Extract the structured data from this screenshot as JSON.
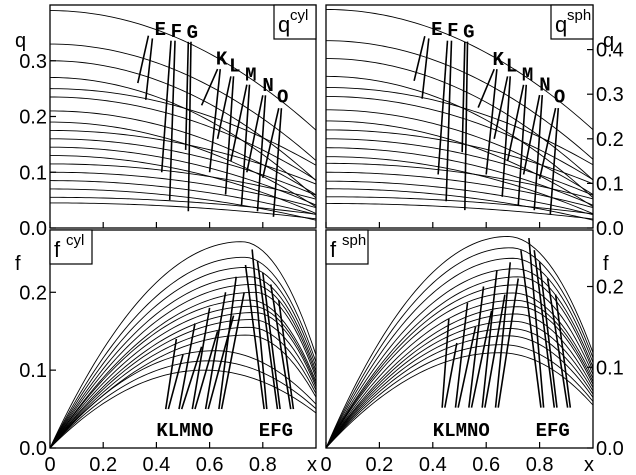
{
  "chart_data": [
    {
      "type": "line",
      "id": "q_cyl",
      "panel_label": {
        "main": "q",
        "sup": "cyl"
      },
      "ylabel": "q",
      "xlim": [
        0,
        1.0
      ],
      "ylim": [
        0,
        0.4
      ],
      "yticks": [
        0.0,
        0.1,
        0.2,
        0.3
      ],
      "ytick_labels": [
        "0.0",
        "0.1",
        "0.2",
        "0.3"
      ],
      "xticks": [
        0,
        0.2,
        0.4,
        0.6,
        0.8
      ],
      "axis_side": "left",
      "curve_letters": [
        {
          "text": "E",
          "x": 0.415,
          "y": 0.346
        },
        {
          "text": "F",
          "x": 0.475,
          "y": 0.343
        },
        {
          "text": "G",
          "x": 0.535,
          "y": 0.341
        },
        {
          "text": "K",
          "x": 0.645,
          "y": 0.293
        },
        {
          "text": "L",
          "x": 0.695,
          "y": 0.281
        },
        {
          "text": "M",
          "x": 0.755,
          "y": 0.265
        },
        {
          "text": "N",
          "x": 0.82,
          "y": 0.246
        },
        {
          "text": "O",
          "x": 0.875,
          "y": 0.225
        }
      ],
      "series_amplitudes": [
        0.39,
        0.33,
        0.3,
        0.27,
        0.25,
        0.235,
        0.21,
        0.19,
        0.175,
        0.16,
        0.145,
        0.13,
        0.115,
        0.1,
        0.085,
        0.07,
        0.055,
        0.045
      ],
      "lines": [
        [
          [
            0.37,
            0.345
          ],
          [
            0.33,
            0.26
          ]
        ],
        [
          [
            0.385,
            0.34
          ],
          [
            0.36,
            0.23
          ]
        ],
        [
          [
            0.455,
            0.336
          ],
          [
            0.42,
            0.1
          ]
        ],
        [
          [
            0.47,
            0.336
          ],
          [
            0.45,
            0.05
          ]
        ],
        [
          [
            0.52,
            0.334
          ],
          [
            0.51,
            0.14
          ]
        ],
        [
          [
            0.53,
            0.334
          ],
          [
            0.52,
            0.03
          ]
        ],
        [
          [
            0.63,
            0.285
          ],
          [
            0.57,
            0.22
          ]
        ],
        [
          [
            0.64,
            0.285
          ],
          [
            0.6,
            0.1
          ]
        ],
        [
          [
            0.68,
            0.272
          ],
          [
            0.63,
            0.16
          ]
        ],
        [
          [
            0.69,
            0.272
          ],
          [
            0.66,
            0.06
          ]
        ],
        [
          [
            0.74,
            0.257
          ],
          [
            0.68,
            0.12
          ]
        ],
        [
          [
            0.75,
            0.257
          ],
          [
            0.72,
            0.04
          ]
        ],
        [
          [
            0.8,
            0.238
          ],
          [
            0.74,
            0.1
          ]
        ],
        [
          [
            0.81,
            0.238
          ],
          [
            0.78,
            0.03
          ]
        ],
        [
          [
            0.86,
            0.215
          ],
          [
            0.8,
            0.09
          ]
        ],
        [
          [
            0.87,
            0.215
          ],
          [
            0.84,
            0.02
          ]
        ]
      ]
    },
    {
      "type": "line",
      "id": "q_sph",
      "panel_label": {
        "main": "q",
        "sup": "sph"
      },
      "ylabel": "q",
      "xlim": [
        0,
        1.0
      ],
      "ylim": [
        0,
        0.5
      ],
      "yticks": [
        0.0,
        0.1,
        0.2,
        0.3,
        0.4
      ],
      "ytick_labels": [
        "0.0",
        "0.1",
        "0.2",
        "0.3",
        "0.4"
      ],
      "xticks": [
        0,
        0.2,
        0.4,
        0.6,
        0.8
      ],
      "axis_side": "right",
      "curve_letters": [
        {
          "text": "E",
          "x": 0.415,
          "y": 0.433
        },
        {
          "text": "F",
          "x": 0.475,
          "y": 0.43
        },
        {
          "text": "G",
          "x": 0.535,
          "y": 0.427
        },
        {
          "text": "K",
          "x": 0.645,
          "y": 0.366
        },
        {
          "text": "L",
          "x": 0.695,
          "y": 0.351
        },
        {
          "text": "M",
          "x": 0.755,
          "y": 0.331
        },
        {
          "text": "N",
          "x": 0.82,
          "y": 0.308
        },
        {
          "text": "O",
          "x": 0.875,
          "y": 0.281
        }
      ],
      "series_amplitudes": [
        0.49,
        0.42,
        0.38,
        0.34,
        0.315,
        0.295,
        0.265,
        0.24,
        0.22,
        0.2,
        0.18,
        0.16,
        0.145,
        0.125,
        0.105,
        0.088,
        0.07,
        0.055
      ],
      "lines": [
        [
          [
            0.37,
            0.43
          ],
          [
            0.33,
            0.33
          ]
        ],
        [
          [
            0.385,
            0.425
          ],
          [
            0.36,
            0.29
          ]
        ],
        [
          [
            0.455,
            0.42
          ],
          [
            0.42,
            0.12
          ]
        ],
        [
          [
            0.47,
            0.42
          ],
          [
            0.45,
            0.06
          ]
        ],
        [
          [
            0.52,
            0.418
          ],
          [
            0.51,
            0.17
          ]
        ],
        [
          [
            0.53,
            0.418
          ],
          [
            0.52,
            0.04
          ]
        ],
        [
          [
            0.63,
            0.356
          ],
          [
            0.57,
            0.27
          ]
        ],
        [
          [
            0.64,
            0.356
          ],
          [
            0.6,
            0.12
          ]
        ],
        [
          [
            0.68,
            0.34
          ],
          [
            0.63,
            0.2
          ]
        ],
        [
          [
            0.69,
            0.34
          ],
          [
            0.66,
            0.07
          ]
        ],
        [
          [
            0.74,
            0.321
          ],
          [
            0.68,
            0.15
          ]
        ],
        [
          [
            0.75,
            0.321
          ],
          [
            0.72,
            0.05
          ]
        ],
        [
          [
            0.8,
            0.298
          ],
          [
            0.74,
            0.12
          ]
        ],
        [
          [
            0.81,
            0.298
          ],
          [
            0.78,
            0.04
          ]
        ],
        [
          [
            0.86,
            0.269
          ],
          [
            0.8,
            0.11
          ]
        ],
        [
          [
            0.87,
            0.269
          ],
          [
            0.84,
            0.03
          ]
        ]
      ]
    },
    {
      "type": "line",
      "id": "f_cyl",
      "panel_label": {
        "main": "f",
        "sup": "cyl"
      },
      "ylabel": "f",
      "xlim": [
        0,
        1.0
      ],
      "ylim": [
        0,
        0.28
      ],
      "yticks": [
        0.0,
        0.1,
        0.2
      ],
      "ytick_labels": [
        "0.0",
        "0.1",
        "0.2"
      ],
      "xticks": [
        0,
        0.2,
        0.4,
        0.6,
        0.8
      ],
      "xtick_labels": [
        "0",
        "0.2",
        "0.4",
        "0.6",
        "0.8"
      ],
      "xlabel": "x",
      "axis_side": "left",
      "bottom_labels": [
        {
          "text": "KLMNO",
          "x": 0.4
        },
        {
          "text": "EFG",
          "x": 0.785
        }
      ],
      "series_peaks": [
        {
          "peak": 0.265,
          "at": 0.72
        },
        {
          "peak": 0.245,
          "at": 0.73
        },
        {
          "peak": 0.232,
          "at": 0.74
        },
        {
          "peak": 0.22,
          "at": 0.75
        },
        {
          "peak": 0.21,
          "at": 0.76
        },
        {
          "peak": 0.2,
          "at": 0.77
        },
        {
          "peak": 0.19,
          "at": 0.75
        },
        {
          "peak": 0.182,
          "at": 0.76
        },
        {
          "peak": 0.174,
          "at": 0.77
        },
        {
          "peak": 0.165,
          "at": 0.76
        },
        {
          "peak": 0.155,
          "at": 0.75
        },
        {
          "peak": 0.145,
          "at": 0.74
        },
        {
          "peak": 0.125,
          "at": 0.62
        },
        {
          "peak": 0.112,
          "at": 0.6
        },
        {
          "peak": 0.1,
          "at": 0.58
        }
      ],
      "lines": [
        [
          [
            0.435,
            0.05
          ],
          [
            0.475,
            0.14
          ]
        ],
        [
          [
            0.445,
            0.05
          ],
          [
            0.5,
            0.12
          ]
        ],
        [
          [
            0.485,
            0.05
          ],
          [
            0.545,
            0.16
          ]
        ],
        [
          [
            0.495,
            0.05
          ],
          [
            0.57,
            0.13
          ]
        ],
        [
          [
            0.535,
            0.05
          ],
          [
            0.6,
            0.18
          ]
        ],
        [
          [
            0.545,
            0.05
          ],
          [
            0.63,
            0.15
          ]
        ],
        [
          [
            0.585,
            0.05
          ],
          [
            0.66,
            0.2
          ]
        ],
        [
          [
            0.595,
            0.05
          ],
          [
            0.69,
            0.17
          ]
        ],
        [
          [
            0.635,
            0.05
          ],
          [
            0.7,
            0.22
          ]
        ],
        [
          [
            0.645,
            0.05
          ],
          [
            0.73,
            0.2
          ]
        ],
        [
          [
            0.805,
            0.05
          ],
          [
            0.735,
            0.235
          ]
        ],
        [
          [
            0.815,
            0.05
          ],
          [
            0.76,
            0.255
          ]
        ],
        [
          [
            0.855,
            0.05
          ],
          [
            0.78,
            0.24
          ]
        ],
        [
          [
            0.865,
            0.05
          ],
          [
            0.8,
            0.225
          ]
        ],
        [
          [
            0.905,
            0.05
          ],
          [
            0.83,
            0.21
          ]
        ],
        [
          [
            0.915,
            0.05
          ],
          [
            0.86,
            0.19
          ]
        ]
      ]
    },
    {
      "type": "line",
      "id": "f_sph",
      "panel_label": {
        "main": "f",
        "sup": "sph"
      },
      "ylabel": "f",
      "xlim": [
        0,
        1.0
      ],
      "ylim": [
        0,
        0.27
      ],
      "yticks": [
        0.0,
        0.1,
        0.2
      ],
      "ytick_labels": [
        "0.0",
        "0.1",
        "0.2"
      ],
      "xticks": [
        0,
        0.2,
        0.4,
        0.6,
        0.8
      ],
      "xtick_labels": [
        "0",
        "0.2",
        "0.4",
        "0.6",
        "0.8"
      ],
      "xlabel": "x",
      "axis_side": "right",
      "bottom_labels": [
        {
          "text": "KLMNO",
          "x": 0.4
        },
        {
          "text": "EFG",
          "x": 0.785
        }
      ],
      "series_peaks": [
        {
          "peak": 0.262,
          "at": 0.68
        },
        {
          "peak": 0.248,
          "at": 0.69
        },
        {
          "peak": 0.235,
          "at": 0.7
        },
        {
          "peak": 0.222,
          "at": 0.71
        },
        {
          "peak": 0.212,
          "at": 0.72
        },
        {
          "peak": 0.202,
          "at": 0.71
        },
        {
          "peak": 0.192,
          "at": 0.7
        },
        {
          "peak": 0.183,
          "at": 0.71
        },
        {
          "peak": 0.175,
          "at": 0.72
        },
        {
          "peak": 0.166,
          "at": 0.71
        },
        {
          "peak": 0.157,
          "at": 0.7
        },
        {
          "peak": 0.148,
          "at": 0.69
        },
        {
          "peak": 0.139,
          "at": 0.68
        },
        {
          "peak": 0.128,
          "at": 0.66
        },
        {
          "peak": 0.118,
          "at": 0.65
        }
      ],
      "lines": [
        [
          [
            0.435,
            0.05
          ],
          [
            0.46,
            0.16
          ]
        ],
        [
          [
            0.445,
            0.05
          ],
          [
            0.49,
            0.13
          ]
        ],
        [
          [
            0.485,
            0.05
          ],
          [
            0.53,
            0.18
          ]
        ],
        [
          [
            0.495,
            0.05
          ],
          [
            0.56,
            0.15
          ]
        ],
        [
          [
            0.535,
            0.05
          ],
          [
            0.59,
            0.2
          ]
        ],
        [
          [
            0.545,
            0.05
          ],
          [
            0.62,
            0.17
          ]
        ],
        [
          [
            0.585,
            0.05
          ],
          [
            0.64,
            0.22
          ]
        ],
        [
          [
            0.595,
            0.05
          ],
          [
            0.67,
            0.19
          ]
        ],
        [
          [
            0.635,
            0.05
          ],
          [
            0.69,
            0.23
          ]
        ],
        [
          [
            0.645,
            0.05
          ],
          [
            0.72,
            0.21
          ]
        ],
        [
          [
            0.805,
            0.05
          ],
          [
            0.73,
            0.245
          ]
        ],
        [
          [
            0.815,
            0.05
          ],
          [
            0.76,
            0.26
          ]
        ],
        [
          [
            0.855,
            0.05
          ],
          [
            0.78,
            0.245
          ]
        ],
        [
          [
            0.865,
            0.05
          ],
          [
            0.8,
            0.23
          ]
        ],
        [
          [
            0.905,
            0.05
          ],
          [
            0.83,
            0.21
          ]
        ],
        [
          [
            0.915,
            0.05
          ],
          [
            0.86,
            0.19
          ]
        ]
      ]
    }
  ]
}
